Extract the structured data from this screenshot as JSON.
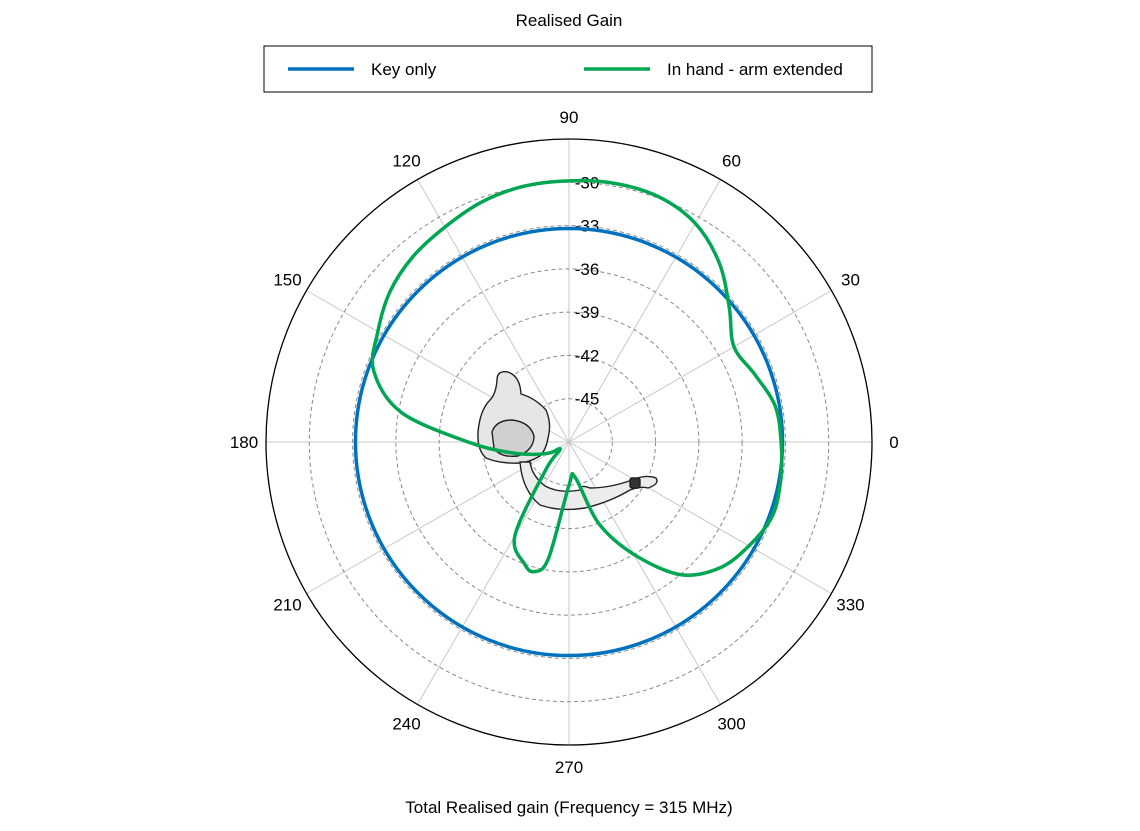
{
  "chart_data": {
    "type": "polar",
    "title": "Realised Gain",
    "xlabel": "Total Realised gain (Frequency = 315 MHz)",
    "radial_range": [
      -48,
      -27
    ],
    "radial_ticks": [
      -30,
      -33,
      -36,
      -39,
      -42,
      -45
    ],
    "angle_ticks": [
      0,
      30,
      60,
      90,
      120,
      150,
      180,
      210,
      240,
      270,
      300,
      330
    ],
    "angle_unit": "deg",
    "grid": true,
    "legend_position": "top",
    "series": [
      {
        "name": "Key only",
        "color": "#0072BD",
        "angles": [
          0,
          30,
          60,
          90,
          120,
          150,
          180,
          210,
          240,
          270,
          300,
          330,
          360
        ],
        "values": [
          -33.2,
          -33.2,
          -33.2,
          -33.2,
          -33.2,
          -33.2,
          -33.2,
          -33.2,
          -33.2,
          -33.2,
          -33.2,
          -33.2,
          -33.2
        ]
      },
      {
        "name": "In hand - arm extended",
        "color": "#00A651",
        "angles": [
          0,
          10,
          20,
          30,
          40,
          50,
          60,
          70,
          80,
          90,
          100,
          110,
          120,
          130,
          140,
          150,
          160,
          170,
          180,
          190,
          200,
          210,
          220,
          230,
          240,
          250,
          255,
          260,
          270,
          280,
          290,
          300,
          310,
          320,
          330,
          340,
          350,
          360
        ],
        "values": [
          -33.3,
          -33.5,
          -34.3,
          -34.8,
          -33.5,
          -31.8,
          -30.5,
          -29.9,
          -29.8,
          -29.9,
          -30.0,
          -30.3,
          -30.8,
          -31.2,
          -31.8,
          -32.7,
          -33.6,
          -36.2,
          -41.0,
          -43.8,
          -45.5,
          -46.5,
          -47.2,
          -45.5,
          -40.5,
          -39.0,
          -38.7,
          -39.8,
          -45.0,
          -45.5,
          -42.0,
          -39.0,
          -36.0,
          -34.4,
          -33.6,
          -33.0,
          -33.1,
          -33.3
        ]
      }
    ]
  }
}
